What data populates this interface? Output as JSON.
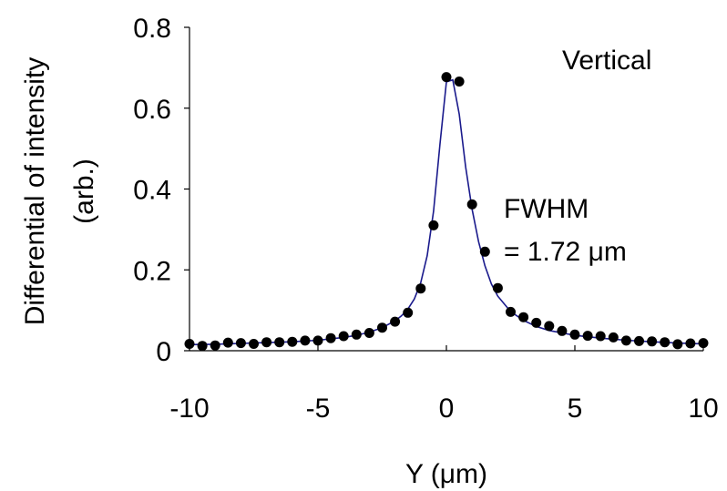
{
  "chart_data": {
    "type": "scatter",
    "title": "",
    "xlabel": "Y (μm)",
    "ylabel_line1": "Differential of intensity",
    "ylabel_line2": "(arb.)",
    "xlim": [
      -10,
      10
    ],
    "ylim": [
      0,
      0.8
    ],
    "xticks": [
      -10,
      -5,
      0,
      5,
      10
    ],
    "xtick_labels": [
      "-10",
      "-5",
      "0",
      "5",
      "10"
    ],
    "yticks": [
      0,
      0.2,
      0.4,
      0.6,
      0.8
    ],
    "ytick_labels": [
      "0",
      "0.2",
      "0.4",
      "0.6",
      "0.8"
    ],
    "grid": false,
    "annotations": {
      "panel": "Vertical",
      "fwhm_line1": "FWHM",
      "fwhm_line2": "= 1.72 μm"
    },
    "colors": {
      "points": "#000000",
      "fit_line": "#1a1a8c",
      "fit_line_tail": "#000000"
    },
    "series": [
      {
        "kind": "points",
        "x": [
          -10,
          -9.5,
          -9,
          -8.5,
          -8,
          -7.5,
          -7,
          -6.5,
          -6,
          -5.5,
          -5,
          -4.5,
          -4,
          -3.5,
          -3,
          -2.5,
          -2,
          -1.5,
          -1,
          -0.5,
          0,
          0.5,
          1,
          1.5,
          2,
          2.5,
          3,
          3.5,
          4,
          4.5,
          5,
          5.5,
          6,
          6.5,
          7,
          7.5,
          8,
          8.5,
          9,
          9.5,
          10
        ],
        "y": [
          0.017,
          0.012,
          0.013,
          0.02,
          0.019,
          0.017,
          0.021,
          0.021,
          0.022,
          0.025,
          0.025,
          0.031,
          0.036,
          0.04,
          0.044,
          0.057,
          0.072,
          0.094,
          0.154,
          0.31,
          0.677,
          0.666,
          0.362,
          0.245,
          0.155,
          0.096,
          0.083,
          0.069,
          0.061,
          0.049,
          0.04,
          0.037,
          0.036,
          0.033,
          0.025,
          0.024,
          0.023,
          0.021,
          0.016,
          0.018,
          0.019
        ]
      },
      {
        "kind": "fit",
        "x": [
          -10,
          -9,
          -8,
          -7,
          -6,
          -5,
          -4,
          -3.5,
          -3,
          -2.5,
          -2,
          -1.75,
          -1.5,
          -1.25,
          -1,
          -0.75,
          -0.5,
          -0.25,
          0,
          0.25,
          0.5,
          0.75,
          1,
          1.25,
          1.5,
          1.75,
          2,
          2.5,
          3,
          3.5,
          4,
          5,
          6,
          7,
          8,
          9,
          10
        ],
        "y": [
          0.015,
          0.016,
          0.018,
          0.02,
          0.022,
          0.026,
          0.033,
          0.038,
          0.046,
          0.057,
          0.074,
          0.086,
          0.103,
          0.128,
          0.168,
          0.235,
          0.345,
          0.51,
          0.665,
          0.67,
          0.585,
          0.455,
          0.35,
          0.27,
          0.21,
          0.165,
          0.135,
          0.097,
          0.075,
          0.06,
          0.05,
          0.038,
          0.031,
          0.026,
          0.022,
          0.019,
          0.017
        ]
      }
    ]
  }
}
